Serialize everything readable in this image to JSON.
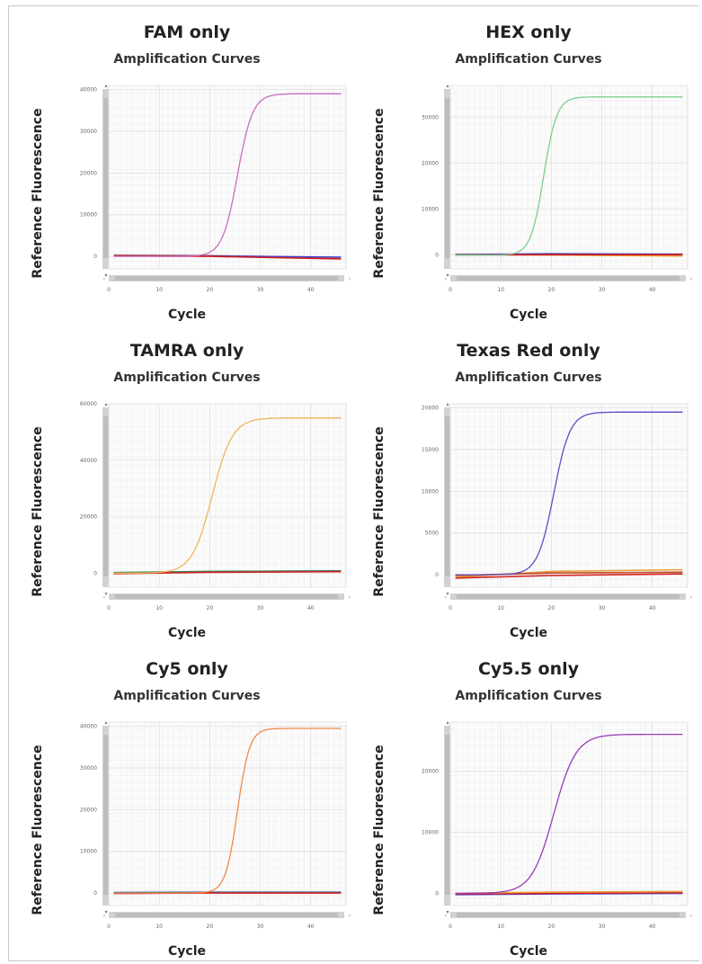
{
  "chart_data": [
    {
      "type": "line",
      "title": "FAM only",
      "subtitle": "Amplification Curves",
      "xlabel": "Cycle",
      "ylabel": "Reference Fluorescence",
      "xlim": [
        0,
        47
      ],
      "ylim": [
        -3000,
        41000
      ],
      "xticks": [
        0,
        10,
        20,
        30,
        40
      ],
      "yticks": [
        0,
        10000,
        20000,
        30000,
        40000
      ],
      "xtick_labels": [
        "0",
        "10",
        "20",
        "30",
        "40"
      ],
      "ytick_labels": [
        "0",
        "10000",
        "20000",
        "30000",
        "40000"
      ],
      "grid": true,
      "curve": {
        "color": "#c86cc0",
        "plateau": 39000,
        "midpoint": 25.5,
        "slope": 1.5
      },
      "baselines": [
        {
          "color": "#e8a03c",
          "values": [
            [
              1,
              300
            ],
            [
              20,
              200
            ],
            [
              46,
              -300
            ]
          ]
        },
        {
          "color": "#3b3bd0",
          "values": [
            [
              1,
              200
            ],
            [
              20,
              100
            ],
            [
              46,
              -200
            ]
          ]
        },
        {
          "color": "#d42020",
          "values": [
            [
              1,
              100
            ],
            [
              20,
              0
            ],
            [
              46,
              -600
            ]
          ]
        }
      ]
    },
    {
      "type": "line",
      "title": "HEX only",
      "subtitle": "Amplification Curves",
      "xlabel": "Cycle",
      "ylabel": "Reference Fluorescence",
      "xlim": [
        0,
        47
      ],
      "ylim": [
        -3000,
        37000
      ],
      "xticks": [
        0,
        10,
        20,
        30,
        40
      ],
      "yticks": [
        0,
        10000,
        20000,
        30000
      ],
      "xtick_labels": [
        "0",
        "10",
        "20",
        "30",
        "40"
      ],
      "ytick_labels": [
        "0",
        "10000",
        "20000",
        "30000"
      ],
      "grid": true,
      "curve": {
        "color": "#7ccf8e",
        "plateau": 34500,
        "midpoint": 18.5,
        "slope": 1.3
      },
      "baselines": [
        {
          "color": "#e8a03c",
          "values": [
            [
              1,
              200
            ],
            [
              20,
              0
            ],
            [
              46,
              -200
            ]
          ]
        },
        {
          "color": "#3b3bd0",
          "values": [
            [
              1,
              100
            ],
            [
              20,
              300
            ],
            [
              46,
              200
            ]
          ]
        },
        {
          "color": "#d42020",
          "values": [
            [
              1,
              0
            ],
            [
              20,
              100
            ],
            [
              46,
              100
            ]
          ]
        }
      ]
    },
    {
      "type": "line",
      "title": "TAMRA only",
      "subtitle": "Amplification Curves",
      "xlabel": "Cycle",
      "ylabel": "Reference Fluorescence",
      "xlim": [
        0,
        47
      ],
      "ylim": [
        -5000,
        60000
      ],
      "xticks": [
        0,
        10,
        20,
        30,
        40
      ],
      "yticks": [
        0,
        20000,
        40000,
        60000
      ],
      "xtick_labels": [
        "0",
        "10",
        "20",
        "30",
        "40"
      ],
      "ytick_labels": [
        "0",
        "20000",
        "40000",
        "60000"
      ],
      "grid": true,
      "curve": {
        "color": "#f2b45a",
        "plateau": 55000,
        "midpoint": 20.5,
        "slope": 2.0
      },
      "baselines": [
        {
          "color": "#3b3bd0",
          "values": [
            [
              1,
              0
            ],
            [
              20,
              500
            ],
            [
              46,
              800
            ]
          ]
        },
        {
          "color": "#2e8b57",
          "values": [
            [
              1,
              200
            ],
            [
              20,
              600
            ],
            [
              46,
              700
            ]
          ]
        },
        {
          "color": "#d42020",
          "values": [
            [
              1,
              -200
            ],
            [
              20,
              300
            ],
            [
              46,
              500
            ]
          ]
        }
      ]
    },
    {
      "type": "line",
      "title": "Texas Red only",
      "subtitle": "Amplification Curves",
      "xlabel": "Cycle",
      "ylabel": "Reference Fluorescence",
      "xlim": [
        0,
        47
      ],
      "ylim": [
        -1500,
        20500
      ],
      "xticks": [
        0,
        10,
        20,
        30,
        40
      ],
      "yticks": [
        0,
        5000,
        10000,
        15000,
        20000
      ],
      "xtick_labels": [
        "0",
        "10",
        "20",
        "30",
        "40"
      ],
      "ytick_labels": [
        "0",
        "5000",
        "10000",
        "15000",
        "20000"
      ],
      "grid": true,
      "curve": {
        "color": "#5a4fc8",
        "plateau": 19500,
        "midpoint": 20.5,
        "slope": 1.6
      },
      "baselines": [
        {
          "color": "#e8a03c",
          "values": [
            [
              1,
              -300
            ],
            [
              20,
              400
            ],
            [
              46,
              600
            ]
          ]
        },
        {
          "color": "#d42020",
          "values": [
            [
              1,
              -400
            ],
            [
              20,
              -100
            ],
            [
              46,
              100
            ]
          ]
        },
        {
          "color": "#c04a2a",
          "values": [
            [
              1,
              -100
            ],
            [
              20,
              200
            ],
            [
              46,
              300
            ]
          ]
        }
      ]
    },
    {
      "type": "line",
      "title": "Cy5 only",
      "subtitle": "Amplification Curves",
      "xlabel": "Cycle",
      "ylabel": "Reference Fluorescence",
      "xlim": [
        0,
        47
      ],
      "ylim": [
        -3000,
        41000
      ],
      "xticks": [
        0,
        10,
        20,
        30,
        40
      ],
      "yticks": [
        0,
        10000,
        20000,
        30000,
        40000
      ],
      "xtick_labels": [
        "0",
        "10",
        "20",
        "30",
        "40"
      ],
      "ytick_labels": [
        "0",
        "10000",
        "20000",
        "30000",
        "40000"
      ],
      "grid": true,
      "curve": {
        "color": "#f0884a",
        "plateau": 39500,
        "midpoint": 25.5,
        "slope": 1.2
      },
      "baselines": [
        {
          "color": "#3b3bd0",
          "values": [
            [
              1,
              100
            ],
            [
              20,
              200
            ],
            [
              46,
              200
            ]
          ]
        },
        {
          "color": "#2e8b57",
          "values": [
            [
              1,
              0
            ],
            [
              20,
              100
            ],
            [
              46,
              100
            ]
          ]
        },
        {
          "color": "#d42020",
          "values": [
            [
              1,
              -100
            ],
            [
              20,
              0
            ],
            [
              46,
              0
            ]
          ]
        }
      ]
    },
    {
      "type": "line",
      "title": "Cy5.5 only",
      "subtitle": "Amplification Curves",
      "xlabel": "Cycle",
      "ylabel": "Reference Fluorescence",
      "xlim": [
        0,
        47
      ],
      "ylim": [
        -2000,
        28000
      ],
      "xticks": [
        0,
        10,
        20,
        30,
        40
      ],
      "yticks": [
        0,
        10000,
        20000
      ],
      "xtick_labels": [
        "0",
        "10",
        "20",
        "30",
        "40"
      ],
      "ytick_labels": [
        "0",
        "10000",
        "20000"
      ],
      "grid": true,
      "curve": {
        "color": "#9a3ab8",
        "plateau": 26000,
        "midpoint": 20.5,
        "slope": 2.2
      },
      "baselines": [
        {
          "color": "#3b3bd0",
          "values": [
            [
              1,
              -200
            ],
            [
              20,
              -100
            ],
            [
              46,
              0
            ]
          ]
        },
        {
          "color": "#d42020",
          "values": [
            [
              1,
              -100
            ],
            [
              20,
              0
            ],
            [
              46,
              100
            ]
          ]
        },
        {
          "color": "#e8a03c",
          "values": [
            [
              1,
              0
            ],
            [
              20,
              200
            ],
            [
              46,
              300
            ]
          ]
        }
      ]
    }
  ]
}
